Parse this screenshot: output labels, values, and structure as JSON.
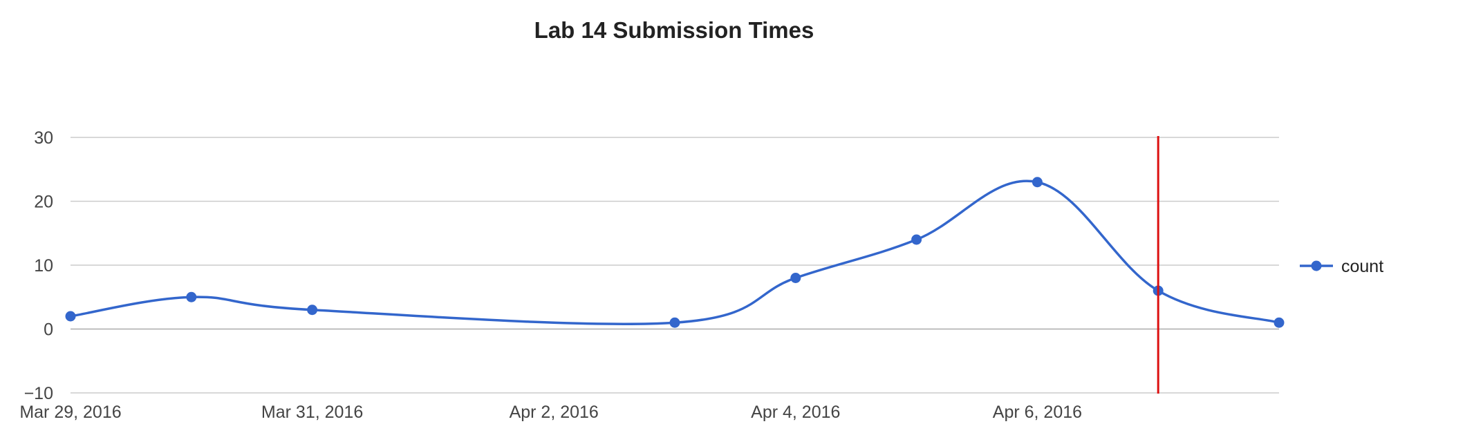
{
  "chart_data": {
    "type": "line",
    "title": "Lab 14 Submission Times",
    "xlabel": "",
    "ylabel": "",
    "x_type": "date",
    "xlim": [
      "2016-03-29",
      "2016-04-08"
    ],
    "ylim": [
      -10,
      30
    ],
    "y_ticks": [
      30,
      20,
      10,
      0,
      -10
    ],
    "x_ticks": [
      {
        "date": "2016-03-29",
        "label": "Mar 29, 2016"
      },
      {
        "date": "2016-03-31",
        "label": "Mar 31, 2016"
      },
      {
        "date": "2016-04-02",
        "label": "Apr 2, 2016"
      },
      {
        "date": "2016-04-04",
        "label": "Apr 4, 2016"
      },
      {
        "date": "2016-04-06",
        "label": "Apr 6, 2016"
      }
    ],
    "grid": true,
    "curve": "smooth",
    "legend": {
      "position": "right"
    },
    "series": [
      {
        "name": "count",
        "color": "#3366cc",
        "points": [
          {
            "x": "2016-03-29",
            "y": 2
          },
          {
            "x": "2016-03-30",
            "y": 5
          },
          {
            "x": "2016-03-31",
            "y": 3
          },
          {
            "x": "2016-04-03",
            "y": 1
          },
          {
            "x": "2016-04-04",
            "y": 8
          },
          {
            "x": "2016-04-05",
            "y": 14
          },
          {
            "x": "2016-04-06",
            "y": 23
          },
          {
            "x": "2016-04-07",
            "y": 6
          },
          {
            "x": "2016-04-08",
            "y": 1
          }
        ]
      }
    ],
    "reference_lines": [
      {
        "x": "2016-04-07",
        "color": "#dd1111"
      }
    ]
  }
}
